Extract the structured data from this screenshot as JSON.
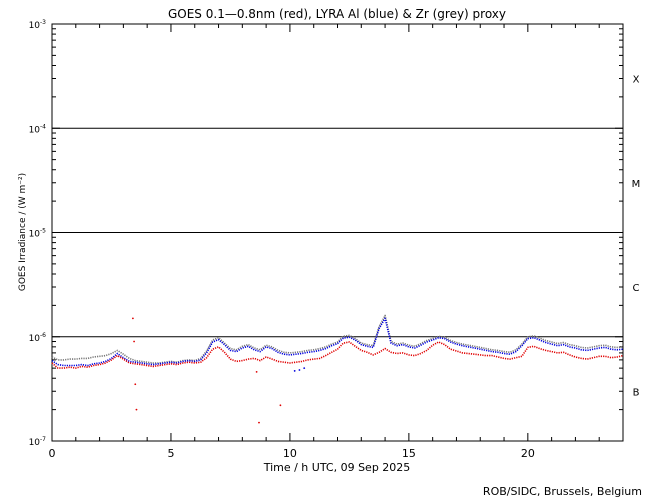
{
  "chart_data": {
    "type": "line",
    "title": "GOES 0.1—0.8nm (red), LYRA Al (blue) & Zr (grey) proxy",
    "xlabel": "Time / h UTC, 09 Sep 2025",
    "ylabel": "GOES Irradiance / (W m⁻²)",
    "credit": "ROB/SIDC, Brussels, Belgium",
    "y_scale": "log",
    "xlim": [
      0,
      24
    ],
    "ylim": [
      1e-07,
      0.001
    ],
    "x_ticks": [
      0,
      5,
      10,
      15,
      20
    ],
    "x_tick_labels": [
      "0",
      "5",
      "10",
      "15",
      "20"
    ],
    "y_ticks": [
      {
        "value": 1e-07,
        "base": "10",
        "exp": "-7"
      },
      {
        "value": 1e-06,
        "base": "10",
        "exp": "-6"
      },
      {
        "value": 1e-05,
        "base": "10",
        "exp": "-5"
      },
      {
        "value": 0.0001,
        "base": "10",
        "exp": "-4"
      },
      {
        "value": 0.001,
        "base": "10",
        "exp": "-3"
      }
    ],
    "flare_class_lines": [
      1e-06,
      1e-05,
      0.0001
    ],
    "flare_classes": [
      {
        "label": "B",
        "y": 3e-07
      },
      {
        "label": "C",
        "y": 3e-06
      },
      {
        "label": "M",
        "y": 3e-05
      },
      {
        "label": "X",
        "y": 0.0003
      }
    ],
    "grid": false,
    "colors": {
      "red": "#e00000",
      "blue": "#0000dd",
      "grey": "#777777",
      "axis": "#000000"
    },
    "x": [
      0.0,
      0.25,
      0.5,
      0.75,
      1.0,
      1.25,
      1.5,
      1.75,
      2.0,
      2.25,
      2.5,
      2.75,
      3.0,
      3.25,
      3.5,
      3.75,
      4.0,
      4.25,
      4.5,
      4.75,
      5.0,
      5.25,
      5.5,
      5.75,
      6.0,
      6.25,
      6.5,
      6.75,
      7.0,
      7.25,
      7.5,
      7.75,
      8.0,
      8.25,
      8.5,
      8.75,
      9.0,
      9.25,
      9.5,
      9.75,
      10.0,
      10.25,
      10.5,
      10.75,
      11.0,
      11.25,
      11.5,
      11.75,
      12.0,
      12.25,
      12.5,
      12.75,
      13.0,
      13.25,
      13.5,
      13.75,
      14.0,
      14.25,
      14.5,
      14.75,
      15.0,
      15.25,
      15.5,
      15.75,
      16.0,
      16.25,
      16.5,
      16.75,
      17.0,
      17.25,
      17.5,
      17.75,
      18.0,
      18.25,
      18.5,
      18.75,
      19.0,
      19.25,
      19.5,
      19.75,
      20.0,
      20.25,
      20.5,
      20.75,
      21.0,
      21.25,
      21.5,
      21.75,
      22.0,
      22.25,
      22.5,
      22.75,
      23.0,
      23.25,
      23.5,
      23.75,
      24.0
    ],
    "series": [
      {
        "name": "GOES 0.1—0.8nm",
        "color": "#e00000",
        "values": [
          5.6e-07,
          5e-07,
          5e-07,
          5.1e-07,
          5e-07,
          5.2e-07,
          5.1e-07,
          5.3e-07,
          5.4e-07,
          5.6e-07,
          6e-07,
          6.6e-07,
          6.1e-07,
          5.6e-07,
          5.5e-07,
          5.4e-07,
          5.3e-07,
          5.2e-07,
          5.3e-07,
          5.4e-07,
          5.5e-07,
          5.4e-07,
          5.6e-07,
          5.7e-07,
          5.6e-07,
          5.7e-07,
          6.3e-07,
          7.6e-07,
          8e-07,
          7.1e-07,
          6.1e-07,
          5.8e-07,
          5.9e-07,
          6.1e-07,
          6.2e-07,
          5.9e-07,
          6.4e-07,
          6.1e-07,
          5.8e-07,
          5.7e-07,
          5.6e-07,
          5.7e-07,
          5.8e-07,
          6e-07,
          6.1e-07,
          6.2e-07,
          6.6e-07,
          7.1e-07,
          7.6e-07,
          8.7e-07,
          8.9e-07,
          8.1e-07,
          7.4e-07,
          7.1e-07,
          6.7e-07,
          7.1e-07,
          7.7e-07,
          7.1e-07,
          6.9e-07,
          7e-07,
          6.7e-07,
          6.6e-07,
          6.9e-07,
          7.4e-07,
          8.3e-07,
          8.9e-07,
          8.4e-07,
          7.6e-07,
          7.3e-07,
          7e-07,
          6.9e-07,
          6.8e-07,
          6.7e-07,
          6.6e-07,
          6.6e-07,
          6.4e-07,
          6.2e-07,
          6.1e-07,
          6.3e-07,
          6.5e-07,
          7.9e-07,
          8.1e-07,
          7.7e-07,
          7.4e-07,
          7.2e-07,
          7e-07,
          7.1e-07,
          6.7e-07,
          6.4e-07,
          6.2e-07,
          6.1e-07,
          6.3e-07,
          6.5e-07,
          6.5e-07,
          6.3e-07,
          6.4e-07,
          6.6e-07
        ]
      },
      {
        "name": "LYRA Al",
        "color": "#0000dd",
        "values": [
          5.9e-07,
          5.4e-07,
          5.3e-07,
          5.3e-07,
          5.3e-07,
          5.4e-07,
          5.3e-07,
          5.5e-07,
          5.6e-07,
          5.8e-07,
          6.2e-07,
          6.9e-07,
          6.3e-07,
          5.8e-07,
          5.7e-07,
          5.6e-07,
          5.5e-07,
          5.4e-07,
          5.5e-07,
          5.6e-07,
          5.7e-07,
          5.6e-07,
          5.8e-07,
          5.9e-07,
          5.8e-07,
          6e-07,
          7e-07,
          8.9e-07,
          9.4e-07,
          8.4e-07,
          7.4e-07,
          7.2e-07,
          7.8e-07,
          8.1e-07,
          7.5e-07,
          7.2e-07,
          8e-07,
          7.7e-07,
          7.1e-07,
          6.8e-07,
          6.7e-07,
          6.8e-07,
          6.9e-07,
          7.1e-07,
          7.2e-07,
          7.4e-07,
          7.7e-07,
          8.2e-07,
          8.6e-07,
          9.7e-07,
          9.9e-07,
          9.3e-07,
          8.4e-07,
          8.1e-07,
          7.9e-07,
          1.2e-06,
          1.5e-06,
          8.7e-07,
          8.2e-07,
          8.4e-07,
          8e-07,
          7.8e-07,
          8.3e-07,
          8.9e-07,
          9.3e-07,
          9.8e-07,
          9.6e-07,
          8.9e-07,
          8.5e-07,
          8.2e-07,
          8e-07,
          7.8e-07,
          7.6e-07,
          7.4e-07,
          7.2e-07,
          7.1e-07,
          6.9e-07,
          6.8e-07,
          7.2e-07,
          8.2e-07,
          9.6e-07,
          9.8e-07,
          9.3e-07,
          8.8e-07,
          8.5e-07,
          8.2e-07,
          8.4e-07,
          8e-07,
          7.8e-07,
          7.5e-07,
          7.4e-07,
          7.6e-07,
          7.8e-07,
          7.9e-07,
          7.6e-07,
          7.5e-07,
          7.6e-07
        ]
      },
      {
        "name": "Zr",
        "color": "#777777",
        "values": [
          6.4e-07,
          6e-07,
          6e-07,
          6.1e-07,
          6.1e-07,
          6.2e-07,
          6.2e-07,
          6.4e-07,
          6.5e-07,
          6.6e-07,
          6.9e-07,
          7.4e-07,
          6.8e-07,
          6.2e-07,
          5.9e-07,
          5.8e-07,
          5.7e-07,
          5.6e-07,
          5.6e-07,
          5.7e-07,
          5.8e-07,
          5.7e-07,
          5.9e-07,
          6e-07,
          5.9e-07,
          6.2e-07,
          7.3e-07,
          9.3e-07,
          9.8e-07,
          8.7e-07,
          7.7e-07,
          7.5e-07,
          8.1e-07,
          8.4e-07,
          7.8e-07,
          7.5e-07,
          8.3e-07,
          8e-07,
          7.4e-07,
          7.1e-07,
          7e-07,
          7.1e-07,
          7.2e-07,
          7.4e-07,
          7.5e-07,
          7.7e-07,
          8e-07,
          8.5e-07,
          8.9e-07,
          1.01e-06,
          1.03e-06,
          9.6e-07,
          8.7e-07,
          8.4e-07,
          8.2e-07,
          1.25e-06,
          1.6e-06,
          9e-07,
          8.5e-07,
          8.7e-07,
          8.3e-07,
          8.1e-07,
          8.6e-07,
          9.2e-07,
          9.6e-07,
          1.01e-06,
          9.9e-07,
          9.2e-07,
          8.8e-07,
          8.5e-07,
          8.3e-07,
          8.1e-07,
          7.9e-07,
          7.7e-07,
          7.5e-07,
          7.4e-07,
          7.2e-07,
          7.1e-07,
          7.5e-07,
          8.5e-07,
          1e-06,
          1.02e-06,
          9.7e-07,
          9.2e-07,
          8.9e-07,
          8.6e-07,
          8.8e-07,
          8.4e-07,
          8.2e-07,
          7.9e-07,
          7.8e-07,
          8e-07,
          8.2e-07,
          8.3e-07,
          8e-07,
          7.9e-07,
          8e-07
        ]
      }
    ],
    "scattered_points": [
      {
        "series": "GOES 0.1—0.8nm",
        "x": 3.4,
        "y": 1.5e-06
      },
      {
        "series": "GOES 0.1—0.8nm",
        "x": 3.45,
        "y": 9e-07
      },
      {
        "series": "GOES 0.1—0.8nm",
        "x": 3.5,
        "y": 3.5e-07
      },
      {
        "series": "GOES 0.1—0.8nm",
        "x": 3.55,
        "y": 2e-07
      },
      {
        "series": "GOES 0.1—0.8nm",
        "x": 8.7,
        "y": 1.5e-07
      },
      {
        "series": "GOES 0.1—0.8nm",
        "x": 9.6,
        "y": 2.2e-07
      },
      {
        "series": "GOES 0.1—0.8nm",
        "x": 8.6,
        "y": 4.6e-07
      },
      {
        "series": "LYRA Al",
        "x": 10.2,
        "y": 4.7e-07
      },
      {
        "series": "LYRA Al",
        "x": 10.4,
        "y": 4.8e-07
      },
      {
        "series": "LYRA Al",
        "x": 10.6,
        "y": 5e-07
      }
    ]
  }
}
